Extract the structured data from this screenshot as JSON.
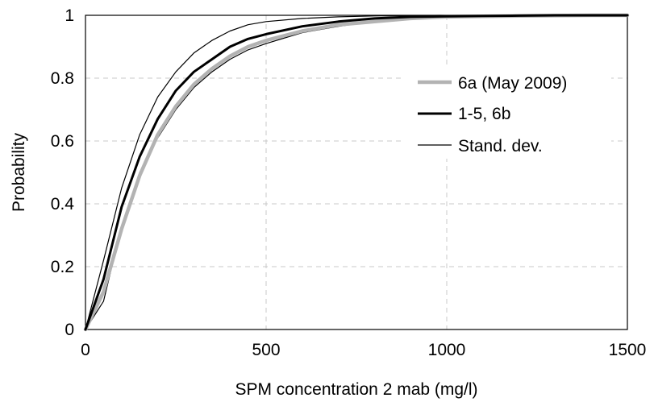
{
  "chart_data": {
    "type": "line",
    "xlabel": "SPM concentration 2 mab (mg/l)",
    "ylabel": "Probability",
    "xlim": [
      0,
      1500
    ],
    "ylim": [
      0,
      1
    ],
    "xticks": [
      0,
      500,
      1000,
      1500
    ],
    "yticks": [
      0,
      0.2,
      0.4,
      0.6,
      0.8,
      1
    ],
    "xtick_labels": [
      "0",
      "500",
      "1000",
      "1500"
    ],
    "ytick_labels": [
      "0",
      "0.2",
      "0.4",
      "0.6",
      "0.8",
      "1"
    ],
    "grid": "dashed",
    "legend_position": "right",
    "series": [
      {
        "name": "6a (May 2009)",
        "color": "#b3b3b3",
        "style": "thick",
        "x": [
          0,
          50,
          100,
          150,
          200,
          250,
          300,
          350,
          400,
          450,
          500,
          600,
          700,
          800,
          900,
          1000,
          1100,
          1200,
          1300,
          1400,
          1500
        ],
        "y": [
          0,
          0.12,
          0.32,
          0.49,
          0.62,
          0.71,
          0.78,
          0.83,
          0.87,
          0.9,
          0.92,
          0.95,
          0.97,
          0.98,
          0.99,
          0.995,
          0.997,
          0.998,
          0.999,
          1,
          1
        ]
      },
      {
        "name": "1-5, 6b",
        "color": "#000000",
        "style": "thick",
        "x": [
          0,
          50,
          100,
          150,
          200,
          250,
          300,
          350,
          400,
          450,
          500,
          600,
          700,
          800,
          900,
          1000,
          1100,
          1200,
          1300,
          1400,
          1500
        ],
        "y": [
          0,
          0.16,
          0.39,
          0.55,
          0.67,
          0.76,
          0.82,
          0.86,
          0.9,
          0.925,
          0.94,
          0.965,
          0.98,
          0.99,
          0.995,
          0.997,
          0.998,
          0.999,
          1,
          1,
          1
        ]
      },
      {
        "name": "Stand. dev.",
        "color": "#000000",
        "style": "thin",
        "x": [
          0,
          50,
          100,
          150,
          200,
          250,
          300,
          350,
          400,
          450,
          500,
          600,
          700,
          800,
          900,
          1000,
          1100,
          1200,
          1300,
          1400,
          1500
        ],
        "y": [
          0,
          0.09,
          0.33,
          0.5,
          0.61,
          0.7,
          0.77,
          0.82,
          0.86,
          0.89,
          0.91,
          0.945,
          0.965,
          0.98,
          0.99,
          0.995,
          0.997,
          0.998,
          0.999,
          1,
          1
        ]
      },
      {
        "name": "",
        "color": "#000000",
        "style": "thin",
        "x": [
          0,
          50,
          100,
          150,
          200,
          250,
          300,
          350,
          400,
          450,
          500,
          600,
          700,
          800,
          900,
          1000,
          1100,
          1200,
          1300,
          1400,
          1500
        ],
        "y": [
          0,
          0.22,
          0.45,
          0.62,
          0.74,
          0.82,
          0.88,
          0.92,
          0.95,
          0.97,
          0.98,
          0.99,
          0.995,
          0.998,
          0.999,
          1,
          1,
          1,
          1,
          1,
          1
        ]
      }
    ]
  }
}
